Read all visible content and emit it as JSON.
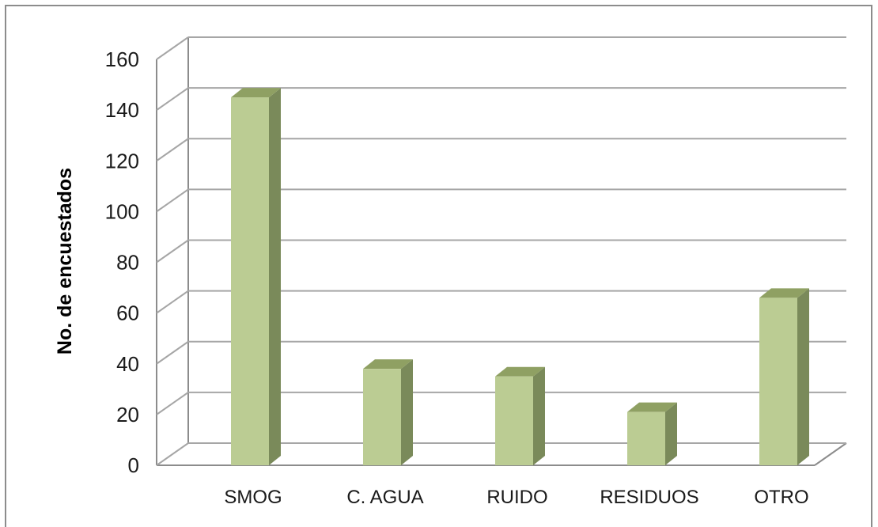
{
  "chart_data": {
    "type": "bar",
    "style": "3d-column",
    "categories": [
      "SMOG",
      "C. AGUA",
      "RUIDO",
      "RESIDUOS",
      "OTRO"
    ],
    "values": [
      145,
      38,
      35,
      21,
      66
    ],
    "title": "",
    "xlabel": "",
    "ylabel": "No. de encuestados",
    "ylim": [
      0,
      160
    ],
    "yticks": [
      0,
      20,
      40,
      60,
      80,
      100,
      120,
      140,
      160
    ],
    "grid": true,
    "legend": "none",
    "colors": {
      "bar_front": "#bbcc93",
      "bar_side": "#7a8a5a",
      "bar_top": "#8fa063",
      "grid": "#a6a6a6",
      "wall": "#8c8c8c"
    }
  }
}
